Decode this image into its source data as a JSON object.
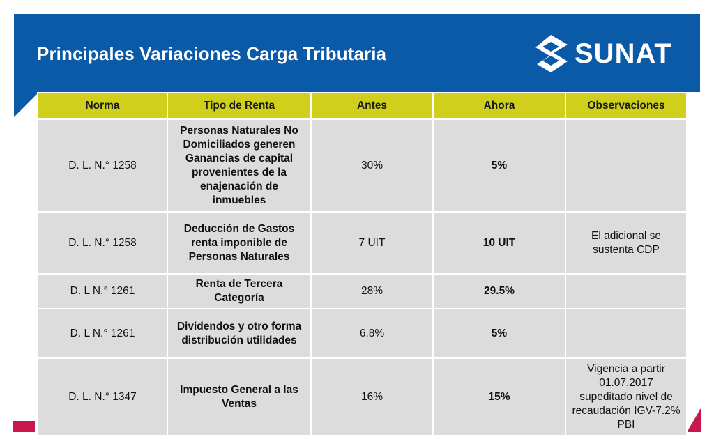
{
  "header": {
    "title": "Principales Variaciones Carga Tributaria",
    "logo_text": "SUNAT",
    "banner_color": "#0a5aa8",
    "accent_color": "#c8174a"
  },
  "table": {
    "header_color": "#cfcf1c",
    "columns": [
      "Norma",
      "Tipo de Renta",
      "Antes",
      "Ahora",
      "Observaciones"
    ],
    "rows": [
      {
        "norma": "D. L. N.° 1258",
        "tipo": "Personas Naturales No Domiciliados generen Ganancias de capital provenientes de la enajenación de inmuebles",
        "antes": "30%",
        "ahora": "5%",
        "obs": ""
      },
      {
        "norma": "D. L. N.° 1258",
        "tipo": "Deducción de Gastos renta imponible de Personas Naturales",
        "antes": "7 UIT",
        "ahora": "10 UIT",
        "obs": "El adicional se sustenta CDP"
      },
      {
        "norma": "D. L N.° 1261",
        "tipo": "Renta de Tercera Categoría",
        "antes": "28%",
        "ahora": "29.5%",
        "obs": ""
      },
      {
        "norma": "D. L N.° 1261",
        "tipo": "Dividendos y otro forma distribución utilidades",
        "antes": "6.8%",
        "ahora": "5%",
        "obs": ""
      },
      {
        "norma": "D. L. N.° 1347",
        "tipo": "Impuesto General a las Ventas",
        "antes": "16%",
        "ahora": "15%",
        "obs": "Vigencia a partir 01.07.2017 supeditado nivel de recaudación IGV-7.2% PBI"
      }
    ]
  }
}
